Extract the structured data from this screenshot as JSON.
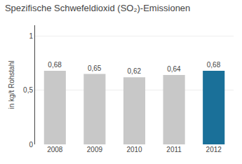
{
  "chart_data": {
    "type": "bar",
    "title": "Spezifische Schwefeldioxid (SO₂)-Emissionen",
    "ylabel": "in kg/t Rohstahl",
    "categories": [
      "2008",
      "2009",
      "2010",
      "2011",
      "2012"
    ],
    "values": [
      0.68,
      0.65,
      0.62,
      0.64,
      0.68
    ],
    "value_labels": [
      "0,68",
      "0,65",
      "0,62",
      "0,64",
      "0,68"
    ],
    "colors": [
      "#c8c8c8",
      "#c8c8c8",
      "#c8c8c8",
      "#c8c8c8",
      "#1a7099"
    ],
    "data_labels": true,
    "ylim": [
      0,
      1.1
    ],
    "yticks": [
      0,
      {
        "value": 0.5,
        "label": "0,5"
      },
      1
    ],
    "grid": true
  }
}
